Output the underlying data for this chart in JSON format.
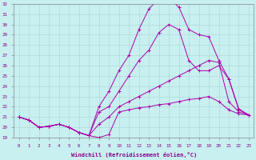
{
  "xlabel": "Windchill (Refroidissement éolien,°C)",
  "background_color": "#c8f0f0",
  "grid_color": "#b0d8d8",
  "line_color": "#aa00aa",
  "xlim": [
    -0.5,
    23.5
  ],
  "ylim": [
    19,
    32
  ],
  "yticks": [
    19,
    20,
    21,
    22,
    23,
    24,
    25,
    26,
    27,
    28,
    29,
    30,
    31,
    32
  ],
  "xticks": [
    0,
    1,
    2,
    3,
    4,
    5,
    6,
    7,
    8,
    9,
    10,
    11,
    12,
    13,
    14,
    15,
    16,
    17,
    18,
    19,
    20,
    21,
    22,
    23
  ],
  "series": [
    [
      21.0,
      20.7,
      20.0,
      20.1,
      20.3,
      20.0,
      19.5,
      19.2,
      19.0,
      19.3,
      21.5,
      21.7,
      21.9,
      22.0,
      22.2,
      22.3,
      22.5,
      22.7,
      22.8,
      23.0,
      22.5,
      21.7,
      21.3,
      21.2
    ],
    [
      21.0,
      20.7,
      20.0,
      20.1,
      20.3,
      20.0,
      19.5,
      19.2,
      20.3,
      21.0,
      22.0,
      22.5,
      23.0,
      23.5,
      24.0,
      24.5,
      25.0,
      25.5,
      26.0,
      26.5,
      26.3,
      22.5,
      21.5,
      21.2
    ],
    [
      21.0,
      20.7,
      20.0,
      20.1,
      20.3,
      20.0,
      19.5,
      19.2,
      21.5,
      22.0,
      23.5,
      25.0,
      26.5,
      27.5,
      29.2,
      30.0,
      29.5,
      26.5,
      25.5,
      25.5,
      26.0,
      24.7,
      21.7,
      21.2
    ],
    [
      21.0,
      20.7,
      20.0,
      20.1,
      20.3,
      20.0,
      19.5,
      19.2,
      22.0,
      23.5,
      25.5,
      27.0,
      29.5,
      31.5,
      32.5,
      32.5,
      31.7,
      29.5,
      29.0,
      28.8,
      26.5,
      24.7,
      21.8,
      21.2
    ]
  ]
}
